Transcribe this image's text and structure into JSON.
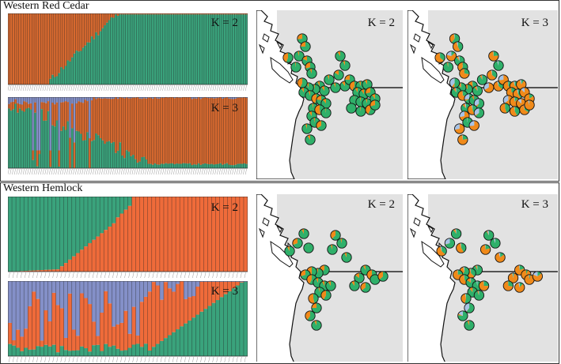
{
  "sections": [
    {
      "title": "Western Red Cedar",
      "structure": [
        {
          "k_label": "K = 2",
          "n_bars": 110,
          "type": "cedar2"
        },
        {
          "k_label": "K = 3",
          "n_bars": 110,
          "type": "cedar3"
        }
      ],
      "maps": [
        {
          "k_label": "K = 2",
          "mix": "k2"
        },
        {
          "k_label": "K = 3",
          "mix": "k3"
        }
      ]
    },
    {
      "title": "Western Hemlock",
      "structure": [
        {
          "k_label": "K = 2",
          "n_bars": 60,
          "type": "hem2"
        },
        {
          "k_label": "K = 3",
          "n_bars": 60,
          "type": "hem3"
        }
      ],
      "maps": [
        {
          "k_label": "K = 2",
          "mix": "k2"
        },
        {
          "k_label": "K = 3",
          "mix": "k3"
        }
      ]
    }
  ],
  "colors": {
    "green": "#3aa37c",
    "orange_cedar": "#d7692f",
    "orange_hem": "#ef6b3a",
    "blue": "#8490c8",
    "pie_green": "#2fb06a",
    "pie_orange": "#f08a1a",
    "pie_blue": "#a7c3e6",
    "map_bg": "#e2e2e2",
    "coast": "#111111"
  }
}
